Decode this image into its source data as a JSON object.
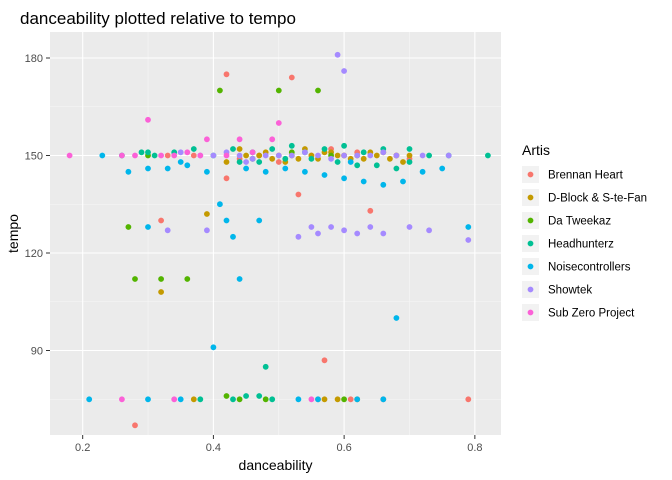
{
  "chart_data": {
    "type": "scatter",
    "title": "danceability plotted relative to tempo",
    "xlabel": "danceability",
    "ylabel": "tempo",
    "xlim": [
      0.15,
      0.84
    ],
    "ylim": [
      64,
      188
    ],
    "x_ticks": [
      0.2,
      0.4,
      0.6,
      0.8
    ],
    "x_tick_labels": [
      "0.2",
      "0.4",
      "0.6",
      "0.8"
    ],
    "y_ticks": [
      90,
      120,
      150,
      180
    ],
    "y_tick_labels": [
      "90",
      "120",
      "150",
      "180"
    ],
    "grid": true,
    "legend": {
      "title": "Artis",
      "position": "right"
    },
    "series": [
      {
        "name": "Brennan Heart",
        "color": "#F8766D",
        "points": [
          [
            0.42,
            175
          ],
          [
            0.52,
            174
          ],
          [
            0.57,
            87
          ],
          [
            0.53,
            138
          ],
          [
            0.32,
            130
          ],
          [
            0.64,
            133
          ],
          [
            0.28,
            67
          ],
          [
            0.79,
            75
          ],
          [
            0.42,
            143
          ],
          [
            0.47,
            150
          ],
          [
            0.6,
            150
          ],
          [
            0.33,
            150
          ],
          [
            0.55,
            150
          ],
          [
            0.68,
            150
          ],
          [
            0.37,
            150
          ],
          [
            0.5,
            148
          ],
          [
            0.58,
            152
          ],
          [
            0.44,
            149
          ],
          [
            0.62,
            151
          ],
          [
            0.7,
            149
          ],
          [
            0.56,
            75
          ],
          [
            0.61,
            75
          ],
          [
            0.66,
            75
          ]
        ]
      },
      {
        "name": "D-Block & S-te-Fan",
        "color": "#C49A00",
        "points": [
          [
            0.39,
            132
          ],
          [
            0.32,
            108
          ],
          [
            0.37,
            75
          ],
          [
            0.45,
            150
          ],
          [
            0.5,
            150
          ],
          [
            0.55,
            150
          ],
          [
            0.6,
            150
          ],
          [
            0.65,
            150
          ],
          [
            0.7,
            150
          ],
          [
            0.42,
            148
          ],
          [
            0.48,
            151
          ],
          [
            0.53,
            149
          ],
          [
            0.58,
            151
          ],
          [
            0.63,
            149
          ],
          [
            0.68,
            150
          ],
          [
            0.44,
            152
          ],
          [
            0.51,
            148
          ],
          [
            0.57,
            151
          ],
          [
            0.61,
            149
          ],
          [
            0.66,
            151
          ],
          [
            0.47,
            150
          ],
          [
            0.52,
            150
          ],
          [
            0.56,
            149
          ],
          [
            0.59,
            150
          ],
          [
            0.62,
            150
          ],
          [
            0.64,
            151
          ],
          [
            0.67,
            149
          ],
          [
            0.49,
            149
          ],
          [
            0.54,
            152
          ],
          [
            0.69,
            148
          ],
          [
            0.57,
            75
          ],
          [
            0.59,
            75
          ],
          [
            0.62,
            75
          ]
        ]
      },
      {
        "name": "Da Tweekaz",
        "color": "#53B400",
        "points": [
          [
            0.41,
            170
          ],
          [
            0.5,
            170
          ],
          [
            0.56,
            170
          ],
          [
            0.27,
            128
          ],
          [
            0.28,
            112
          ],
          [
            0.32,
            112
          ],
          [
            0.36,
            112
          ],
          [
            0.3,
            150
          ],
          [
            0.44,
            75
          ],
          [
            0.48,
            75
          ],
          [
            0.6,
            75
          ],
          [
            0.42,
            76
          ],
          [
            0.46,
            149
          ],
          [
            0.52,
            151
          ],
          [
            0.58,
            150
          ]
        ]
      },
      {
        "name": "Headhunterz",
        "color": "#00C094",
        "points": [
          [
            0.82,
            150
          ],
          [
            0.76,
            150
          ],
          [
            0.73,
            150
          ],
          [
            0.7,
            152
          ],
          [
            0.66,
            152
          ],
          [
            0.63,
            151
          ],
          [
            0.6,
            153
          ],
          [
            0.57,
            152
          ],
          [
            0.54,
            151
          ],
          [
            0.52,
            153
          ],
          [
            0.49,
            152
          ],
          [
            0.46,
            151
          ],
          [
            0.43,
            152
          ],
          [
            0.4,
            150
          ],
          [
            0.37,
            152
          ],
          [
            0.34,
            151
          ],
          [
            0.31,
            150
          ],
          [
            0.29,
            151
          ],
          [
            0.26,
            150
          ],
          [
            0.3,
            151
          ],
          [
            0.48,
            85
          ],
          [
            0.43,
            75
          ],
          [
            0.45,
            76
          ],
          [
            0.47,
            76
          ],
          [
            0.49,
            75
          ],
          [
            0.38,
            75
          ],
          [
            0.7,
            148
          ],
          [
            0.68,
            146
          ],
          [
            0.65,
            147
          ],
          [
            0.62,
            147
          ],
          [
            0.59,
            148
          ],
          [
            0.55,
            149
          ],
          [
            0.51,
            149
          ],
          [
            0.47,
            148
          ],
          [
            0.44,
            148
          ]
        ]
      },
      {
        "name": "Noisecontrollers",
        "color": "#00B6EB",
        "points": [
          [
            0.21,
            75
          ],
          [
            0.3,
            75
          ],
          [
            0.35,
            75
          ],
          [
            0.53,
            75
          ],
          [
            0.56,
            75
          ],
          [
            0.62,
            75
          ],
          [
            0.66,
            75
          ],
          [
            0.4,
            91
          ],
          [
            0.68,
            100
          ],
          [
            0.41,
            135
          ],
          [
            0.42,
            130
          ],
          [
            0.43,
            125
          ],
          [
            0.44,
            112
          ],
          [
            0.47,
            130
          ],
          [
            0.79,
            128
          ],
          [
            0.3,
            128
          ],
          [
            0.27,
            145
          ],
          [
            0.3,
            146
          ],
          [
            0.33,
            146
          ],
          [
            0.36,
            147
          ],
          [
            0.39,
            145
          ],
          [
            0.45,
            146
          ],
          [
            0.48,
            145
          ],
          [
            0.51,
            146
          ],
          [
            0.54,
            145
          ],
          [
            0.57,
            144
          ],
          [
            0.6,
            143
          ],
          [
            0.63,
            142
          ],
          [
            0.66,
            141
          ],
          [
            0.69,
            142
          ],
          [
            0.72,
            145
          ],
          [
            0.75,
            146
          ],
          [
            0.23,
            150
          ],
          [
            0.35,
            148
          ],
          [
            0.61,
            148
          ]
        ]
      },
      {
        "name": "Showtek",
        "color": "#A58AFF",
        "points": [
          [
            0.59,
            181
          ],
          [
            0.6,
            176
          ],
          [
            0.35,
            151
          ],
          [
            0.4,
            150
          ],
          [
            0.44,
            150
          ],
          [
            0.48,
            150
          ],
          [
            0.52,
            150
          ],
          [
            0.56,
            150
          ],
          [
            0.6,
            150
          ],
          [
            0.64,
            150
          ],
          [
            0.68,
            150
          ],
          [
            0.72,
            150
          ],
          [
            0.76,
            150
          ],
          [
            0.33,
            127
          ],
          [
            0.39,
            127
          ],
          [
            0.53,
            125
          ],
          [
            0.55,
            128
          ],
          [
            0.56,
            126
          ],
          [
            0.58,
            128
          ],
          [
            0.6,
            127
          ],
          [
            0.62,
            126
          ],
          [
            0.64,
            128
          ],
          [
            0.66,
            126
          ],
          [
            0.7,
            128
          ],
          [
            0.73,
            127
          ],
          [
            0.79,
            124
          ],
          [
            0.38,
            150
          ],
          [
            0.42,
            151
          ],
          [
            0.46,
            149
          ],
          [
            0.5,
            150
          ],
          [
            0.54,
            151
          ],
          [
            0.58,
            149
          ],
          [
            0.62,
            150
          ],
          [
            0.66,
            151
          ],
          [
            0.45,
            148
          ]
        ]
      },
      {
        "name": "Sub Zero Project",
        "color": "#FB61D7",
        "points": [
          [
            0.18,
            150
          ],
          [
            0.3,
            161
          ],
          [
            0.5,
            160
          ],
          [
            0.39,
            155
          ],
          [
            0.44,
            155
          ],
          [
            0.49,
            155
          ],
          [
            0.26,
            150
          ],
          [
            0.32,
            150
          ],
          [
            0.34,
            150
          ],
          [
            0.36,
            151
          ],
          [
            0.38,
            150
          ],
          [
            0.42,
            150
          ],
          [
            0.46,
            151
          ],
          [
            0.26,
            75
          ],
          [
            0.34,
            75
          ],
          [
            0.55,
            75
          ],
          [
            0.28,
            150
          ]
        ]
      }
    ]
  }
}
